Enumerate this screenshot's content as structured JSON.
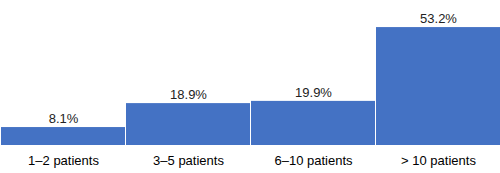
{
  "chart_data": {
    "type": "bar",
    "categories": [
      "1–2 patients",
      "3–5 patients",
      "6–10 patients",
      "> 10 patients"
    ],
    "values": [
      8.1,
      18.9,
      19.9,
      53.2
    ],
    "value_labels": [
      "8.1%",
      "18.9%",
      "19.9%",
      "53.2%"
    ],
    "color": "#4472c4",
    "ylim": [
      0,
      60
    ],
    "data_labels": true,
    "tick_labels": "x"
  }
}
